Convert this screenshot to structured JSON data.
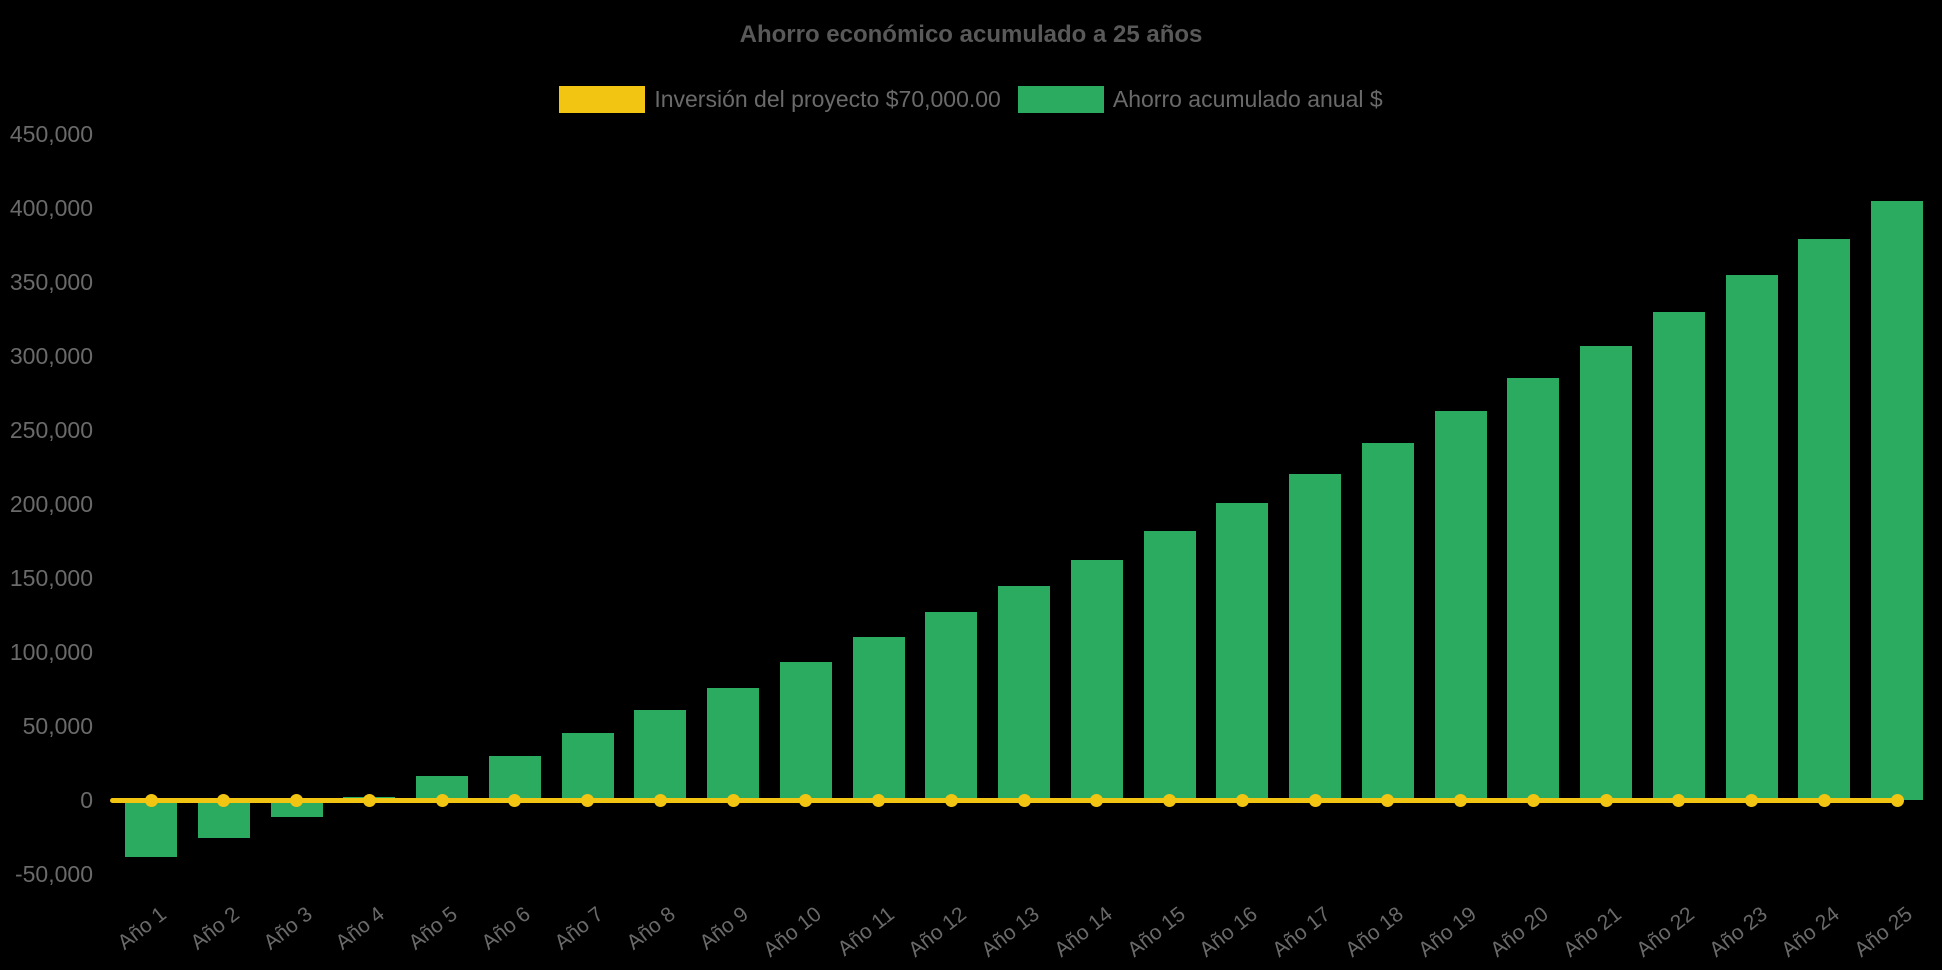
{
  "app": {
    "background": "#000000"
  },
  "chart_data": {
    "type": "bar",
    "title": "Ahorro económico acumulado a 25 años",
    "categories": [
      "Año 1",
      "Año 2",
      "Año 3",
      "Año 4",
      "Año 5",
      "Año 6",
      "Año 7",
      "Año 8",
      "Año 9",
      "Año 10",
      "Año 11",
      "Año 12",
      "Año 13",
      "Año 14",
      "Año 15",
      "Año 16",
      "Año 17",
      "Año 18",
      "Año 19",
      "Año 20",
      "Año 21",
      "Año 22",
      "Año 23",
      "Año 24",
      "Año 25"
    ],
    "series": [
      {
        "name": "Inversión del proyecto $70,000.00",
        "type": "line",
        "color": "#f2c512",
        "constant_value": 0,
        "point_style": "circle"
      },
      {
        "name": "Ahorro acumulado anual $",
        "type": "bar",
        "color": "#2bab60",
        "values": [
          -38500,
          -25500,
          -11500,
          2000,
          16000,
          30000,
          45000,
          61000,
          76000,
          93000,
          110000,
          127000,
          144500,
          162500,
          181500,
          201000,
          220500,
          241500,
          263000,
          285000,
          307000,
          330000,
          354500,
          379000,
          404500
        ]
      }
    ],
    "y_axis": {
      "min": -50000,
      "max": 450000,
      "tick_step": 50000,
      "tick_values": [
        450000,
        400000,
        350000,
        300000,
        250000,
        200000,
        150000,
        100000,
        50000,
        0,
        -50000
      ],
      "tick_labels": [
        "450,000",
        "400,000",
        "350,000",
        "300,000",
        "250,000",
        "200,000",
        "150,000",
        "100,000",
        "50,000",
        "0",
        "-50,000"
      ]
    },
    "x_axis": {
      "label_rotation_deg": -38
    },
    "grid": false,
    "legend_position": "top",
    "text_colors": {
      "title": "#595959",
      "ticks": "#6a6a6a",
      "legend": "#6a6a6a"
    }
  }
}
